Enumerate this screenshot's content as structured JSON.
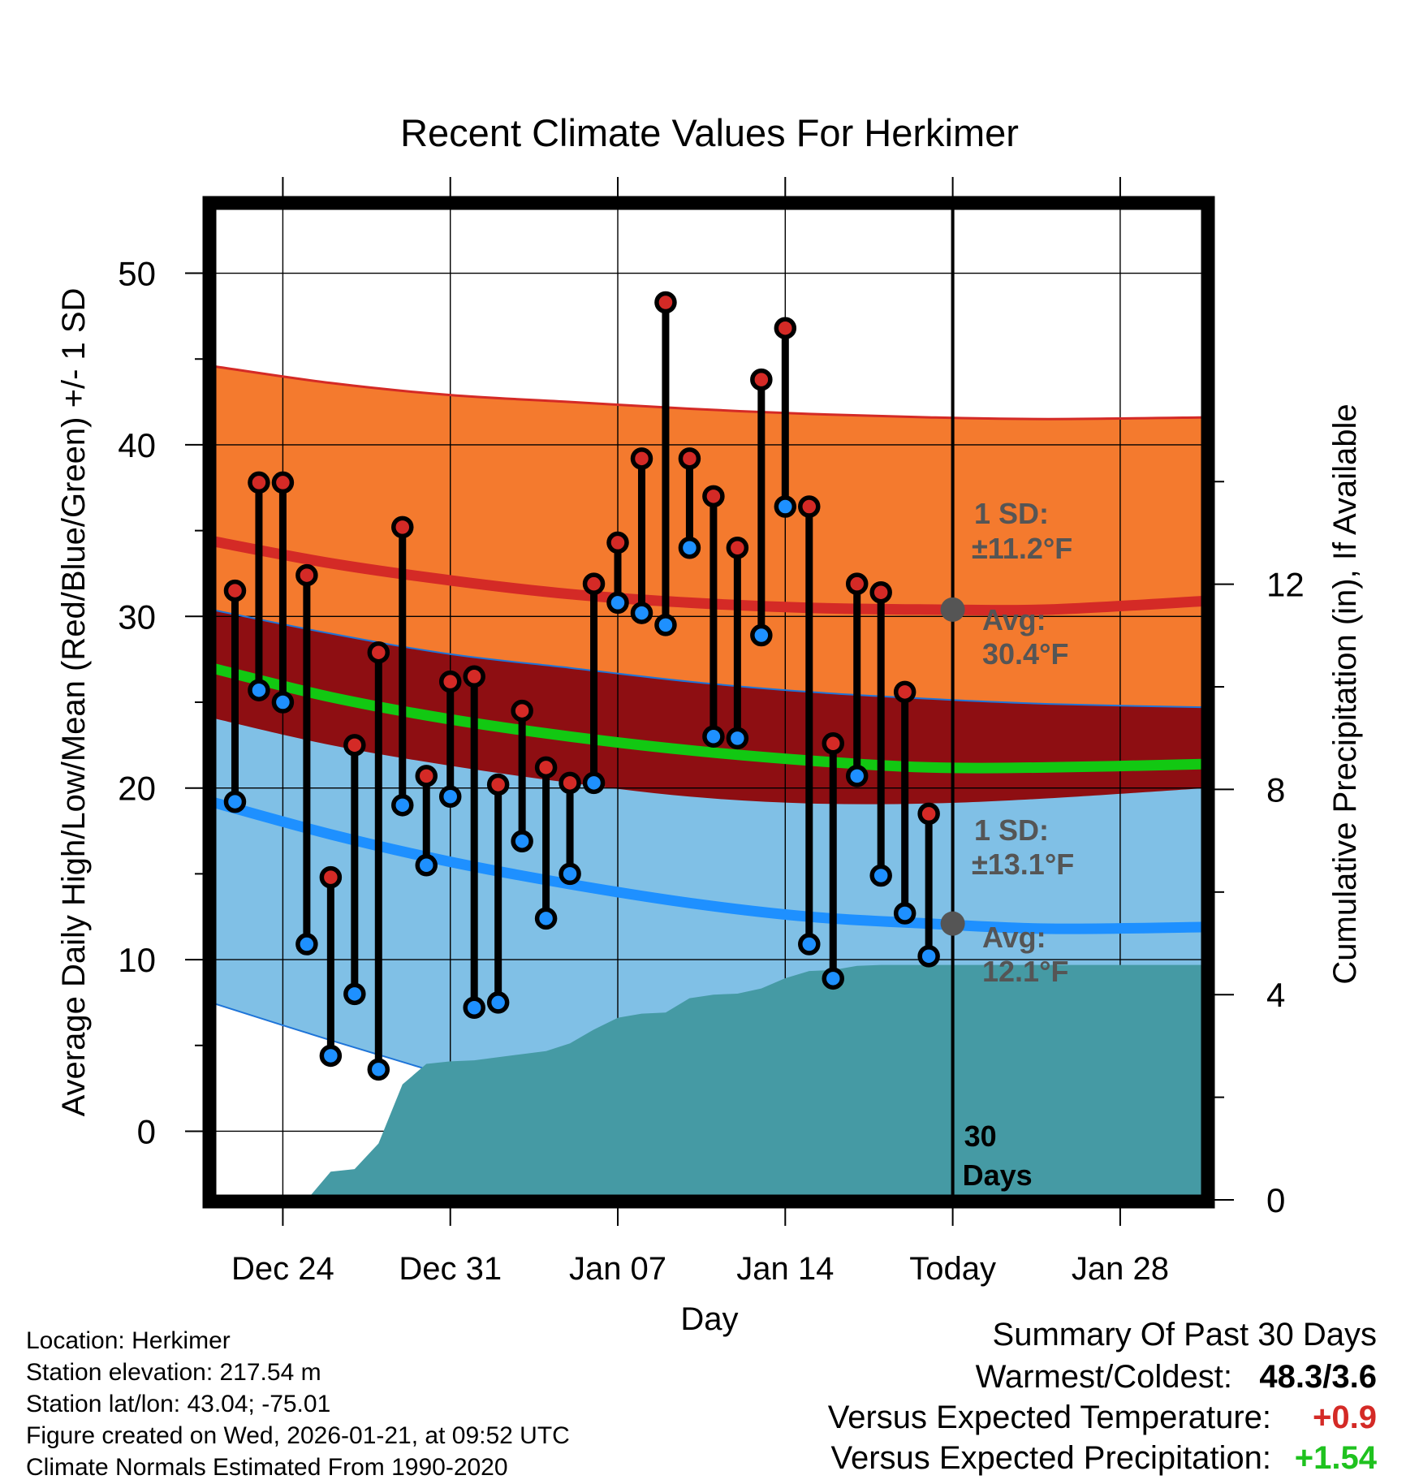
{
  "chart_data": {
    "type": "line",
    "title": "Recent Climate Values For Herkimer",
    "xlabel": "Day",
    "ylabel": "Average Daily High/Low/Mean (Red/Blue/Green) +/- 1 SD",
    "y2label": "Cumulative Precipitation (in), If Available",
    "x_tick_labels": [
      "Dec 24",
      "Dec 31",
      "Jan 07",
      "Jan 14",
      "Today",
      "Jan 28"
    ],
    "x_tick_days": [
      3,
      10,
      17,
      24,
      31,
      38
    ],
    "x_range_days": [
      0,
      41.6
    ],
    "ylim": [
      -4,
      54
    ],
    "yticks": [
      0,
      10,
      20,
      30,
      40,
      50
    ],
    "y2lim": [
      0,
      19.4
    ],
    "y2ticks": [
      0,
      4,
      8,
      12
    ],
    "today_day": 31,
    "today_label_line1": "30",
    "today_label_line2": "Days",
    "daily_observations": {
      "days": [
        1,
        2,
        3,
        4,
        5,
        6,
        7,
        8,
        9,
        10,
        11,
        12,
        13,
        14,
        15,
        16,
        17,
        18,
        19,
        20,
        21,
        22,
        23,
        24,
        25,
        26,
        27,
        28,
        29,
        30
      ],
      "high": [
        31.5,
        37.8,
        37.8,
        32.4,
        14.8,
        22.5,
        27.9,
        35.2,
        20.7,
        26.2,
        26.5,
        20.2,
        24.5,
        21.2,
        20.3,
        31.9,
        34.3,
        39.2,
        48.3,
        39.2,
        37.0,
        34.0,
        43.8,
        46.8,
        36.4,
        22.6,
        31.9,
        31.4,
        25.6,
        18.5
      ],
      "low": [
        19.2,
        25.7,
        25.0,
        10.9,
        4.4,
        8.0,
        3.6,
        19.0,
        15.5,
        19.5,
        7.2,
        7.5,
        16.9,
        12.4,
        15.0,
        20.3,
        30.8,
        30.2,
        29.5,
        34.0,
        23.0,
        22.9,
        28.9,
        36.4,
        10.9,
        8.9,
        20.7,
        14.9,
        12.7,
        10.2
      ]
    },
    "normals": {
      "days": [
        0,
        5,
        10,
        15,
        20,
        25,
        30,
        35,
        41.6
      ],
      "high_avg": [
        34.4,
        33.1,
        32.1,
        31.3,
        30.8,
        30.5,
        30.4,
        30.4,
        30.9
      ],
      "high_plus_sd": [
        44.6,
        43.6,
        42.9,
        42.5,
        42.1,
        41.8,
        41.6,
        41.5,
        41.6
      ],
      "mean_avg": [
        27.0,
        25.3,
        24.0,
        23.0,
        22.2,
        21.6,
        21.2,
        21.2,
        21.4
      ],
      "low_avg": [
        19.2,
        17.3,
        15.7,
        14.4,
        13.3,
        12.5,
        12.1,
        11.8,
        11.9
      ],
      "low_plus_sd": [
        30.4,
        29.0,
        27.8,
        27.0,
        26.2,
        25.6,
        25.2,
        24.9,
        24.7
      ],
      "low_minus_sd": [
        7.5,
        5.3,
        3.2,
        1.1,
        -0.5,
        -1.8,
        -2.3,
        -2.4,
        -2.1
      ],
      "high_minus_sd": [
        24.1,
        22.5,
        21.3,
        20.3,
        19.5,
        19.1,
        19.1,
        19.4,
        20.0
      ]
    },
    "precipitation": {
      "days": [
        0,
        4,
        5,
        6,
        7,
        8,
        9,
        10,
        11,
        12,
        13,
        14,
        15,
        16,
        17,
        18,
        19,
        20,
        21,
        22,
        23,
        24,
        25,
        26,
        27,
        28,
        29,
        30,
        31,
        41.6
      ],
      "cumulative": [
        0,
        0,
        0.55,
        0.6,
        1.1,
        2.25,
        2.65,
        2.7,
        2.72,
        2.78,
        2.84,
        2.9,
        3.05,
        3.32,
        3.55,
        3.63,
        3.65,
        3.93,
        4.0,
        4.02,
        4.12,
        4.32,
        4.46,
        4.48,
        4.56,
        4.58,
        4.58,
        4.58,
        4.58,
        4.58
      ]
    },
    "annotations": {
      "high_sd_label_1": "1 SD:",
      "high_sd_label_2": "±11.2°F",
      "high_avg_label_1": "Avg:",
      "high_avg_label_2": "30.4°F",
      "low_sd_label_1": "1 SD:",
      "low_sd_label_2": "±13.1°F",
      "low_avg_label_1": "Avg:",
      "low_avg_label_2": "12.1°F"
    },
    "colors": {
      "high_band": "#f47a2e",
      "high_line": "#d42a26",
      "mean_band": "#8e0e12",
      "mean_line": "#12c812",
      "low_band": "#80c0e6",
      "low_line": "#1e90ff",
      "low_edge": "#1e74d8",
      "precip_fill": "#459aa4",
      "high_dot": "#d42a26",
      "low_dot": "#1e90ff",
      "avg_marker": "#555555",
      "annotation_text": "#555555"
    }
  },
  "info": {
    "location": "Location: Herkimer",
    "elevation": "Station elevation: 217.54 m",
    "latlon": "Station lat/lon: 43.04; -75.01",
    "created": "Figure created on Wed, 2026-01-21, at 09:52 UTC",
    "normals": "Climate Normals Estimated From 1990-2020"
  },
  "summary": {
    "title": "Summary Of Past 30 Days",
    "warmest_label": "Warmest/Coldest:",
    "warmest_value": "48.3/3.6",
    "temp_label": "Versus Expected Temperature:",
    "temp_value": "+0.9",
    "precip_label": "Versus Expected Precipitation:",
    "precip_value": "+1.54",
    "temp_color": "#d42a26",
    "precip_color": "#1fc21f"
  }
}
